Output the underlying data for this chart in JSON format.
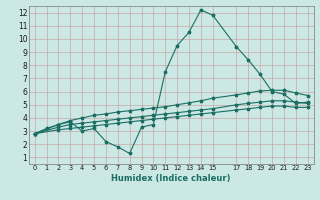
{
  "title": "",
  "xlabel": "Humidex (Indice chaleur)",
  "bg_color": "#cce8e4",
  "line_color": "#1a6e64",
  "xlim": [
    -0.5,
    23.5
  ],
  "ylim": [
    0.5,
    12.5
  ],
  "xticks": [
    0,
    1,
    2,
    3,
    4,
    5,
    6,
    7,
    8,
    9,
    10,
    11,
    12,
    13,
    14,
    15,
    17,
    18,
    19,
    20,
    21,
    22,
    23
  ],
  "yticks": [
    1,
    2,
    3,
    4,
    5,
    6,
    7,
    8,
    9,
    10,
    11,
    12
  ],
  "line1_x": [
    0,
    1,
    2,
    3,
    4,
    5,
    6,
    7,
    8,
    9,
    10,
    11,
    12,
    13,
    14,
    15,
    17,
    18,
    19,
    20,
    21,
    22,
    23
  ],
  "line1_y": [
    2.8,
    3.2,
    3.5,
    3.7,
    3.0,
    3.2,
    2.2,
    1.8,
    1.3,
    3.3,
    3.5,
    7.5,
    9.5,
    10.5,
    12.2,
    11.8,
    9.4,
    8.4,
    7.3,
    6.0,
    5.8,
    5.1,
    5.2
  ],
  "line2_x": [
    0,
    2,
    3,
    4,
    5,
    6,
    7,
    8,
    9,
    10,
    11,
    12,
    13,
    14,
    15,
    17,
    18,
    19,
    20,
    21,
    22,
    23
  ],
  "line2_y": [
    2.8,
    3.5,
    3.8,
    4.0,
    4.2,
    4.3,
    4.45,
    4.55,
    4.65,
    4.75,
    4.85,
    5.0,
    5.15,
    5.3,
    5.5,
    5.75,
    5.9,
    6.05,
    6.1,
    6.1,
    5.9,
    5.7
  ],
  "line3_x": [
    0,
    2,
    3,
    4,
    5,
    6,
    7,
    8,
    9,
    10,
    11,
    12,
    13,
    14,
    15,
    17,
    18,
    19,
    20,
    21,
    22,
    23
  ],
  "line3_y": [
    2.8,
    3.3,
    3.5,
    3.6,
    3.7,
    3.8,
    3.9,
    4.0,
    4.1,
    4.2,
    4.3,
    4.4,
    4.5,
    4.6,
    4.7,
    5.0,
    5.1,
    5.2,
    5.3,
    5.3,
    5.2,
    5.1
  ],
  "line4_x": [
    0,
    2,
    3,
    4,
    5,
    6,
    7,
    8,
    9,
    10,
    11,
    12,
    13,
    14,
    15,
    17,
    18,
    19,
    20,
    21,
    22,
    23
  ],
  "line4_y": [
    2.8,
    3.1,
    3.2,
    3.3,
    3.4,
    3.5,
    3.6,
    3.7,
    3.8,
    3.9,
    4.0,
    4.1,
    4.2,
    4.3,
    4.4,
    4.6,
    4.7,
    4.8,
    4.9,
    4.9,
    4.8,
    4.8
  ]
}
